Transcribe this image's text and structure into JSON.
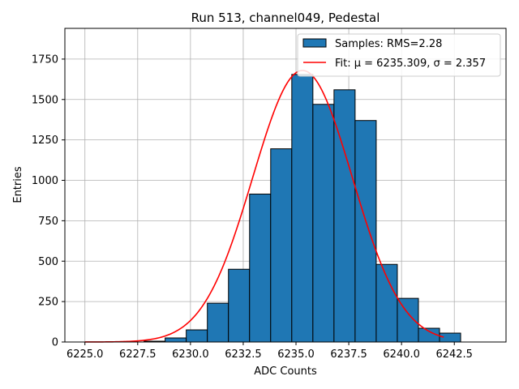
{
  "chart_data": {
    "type": "bar",
    "title": "Run 513, channel049, Pedestal",
    "xlabel": "ADC Counts",
    "ylabel": "Entries",
    "xlim": [
      6224.05,
      6244.95
    ],
    "ylim": [
      0,
      1940
    ],
    "xticks": [
      "6225.0",
      "6227.5",
      "6230.0",
      "6232.5",
      "6235.0",
      "6237.5",
      "6240.0",
      "6242.5"
    ],
    "xtick_values": [
      6225.0,
      6227.5,
      6230.0,
      6232.5,
      6235.0,
      6237.5,
      6240.0,
      6242.5
    ],
    "yticks": [
      "0",
      "250",
      "500",
      "750",
      "1000",
      "1250",
      "1500",
      "1750"
    ],
    "ytick_values": [
      0,
      250,
      500,
      750,
      1000,
      1250,
      1500,
      1750
    ],
    "grid": true,
    "bin_width": 1.0,
    "bins": [
      {
        "x_start": 6227.8,
        "count": 5
      },
      {
        "x_start": 6228.8,
        "count": 25
      },
      {
        "x_start": 6229.8,
        "count": 75
      },
      {
        "x_start": 6230.8,
        "count": 240
      },
      {
        "x_start": 6231.8,
        "count": 450
      },
      {
        "x_start": 6232.8,
        "count": 915
      },
      {
        "x_start": 6233.8,
        "count": 1195
      },
      {
        "x_start": 6234.8,
        "count": 1655
      },
      {
        "x_start": 6235.8,
        "count": 1470
      },
      {
        "x_start": 6236.8,
        "count": 1560
      },
      {
        "x_start": 6237.8,
        "count": 1370
      },
      {
        "x_start": 6238.8,
        "count": 480
      },
      {
        "x_start": 6239.8,
        "count": 270
      },
      {
        "x_start": 6240.8,
        "count": 85
      },
      {
        "x_start": 6241.8,
        "count": 55
      }
    ],
    "fit": {
      "mu": 6235.309,
      "sigma": 2.357,
      "amplitude": 1680,
      "x_range": [
        6225.0,
        6242.0
      ]
    },
    "legend": {
      "placement": "top-right",
      "entries": [
        {
          "label": "Samples: RMS=2.28",
          "kind": "patch"
        },
        {
          "label": "Fit: μ = 6235.309, σ = 2.357",
          "kind": "line"
        }
      ]
    },
    "colors": {
      "bar_fill": "#1f77b4",
      "bar_edge": "#000000",
      "fit_line": "#ff0000",
      "grid": "#b0b0b0"
    }
  }
}
